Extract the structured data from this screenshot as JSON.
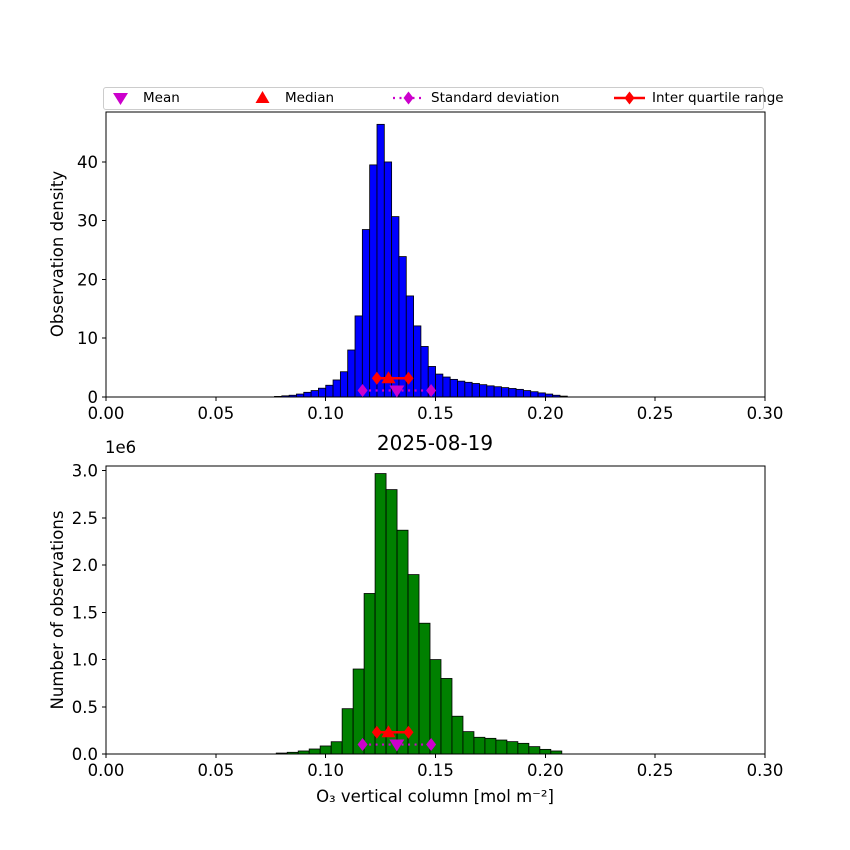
{
  "figure": {
    "title": "2025-08-19",
    "xlabel": "O₃ vertical column [mol m⁻²]",
    "ylabel_top": "Observation density",
    "ylabel_bottom": "Number of observations",
    "offset_label": "1e6",
    "background": "#FFFFFF"
  },
  "colors": {
    "blue_bars": "#0000FF",
    "green_bars": "#008000",
    "bar_edge": "#000000",
    "red_markers": "#FF0000",
    "magenta_markers": "#CC00CC",
    "axis": "#000000",
    "legend_border": "#CCCCCC"
  },
  "legend": {
    "items": [
      {
        "label": "Mean",
        "marker": "triangle-down",
        "color": "#CC00CC"
      },
      {
        "label": "Median",
        "marker": "triangle-up",
        "color": "#FF0000"
      },
      {
        "label": "Standard deviation",
        "marker": "diamond-dotted-line",
        "color": "#CC00CC"
      },
      {
        "label": "Inter quartile range",
        "marker": "diamond-solid-line",
        "color": "#FF0000"
      }
    ]
  },
  "stats": {
    "mean": 0.1324,
    "median": 0.1286,
    "q1": 0.1233,
    "q3": 0.1377,
    "std_range": [
      0.1168,
      0.148
    ]
  },
  "chart_data": [
    {
      "type": "bar",
      "name": "observation-density-histogram",
      "ylabel": "Observation density",
      "bar_color": "#0000FF",
      "bin_start": 0.0767,
      "bin_width": 0.003333,
      "values": [
        0.1,
        0.2,
        0.3,
        0.5,
        0.8,
        1.1,
        1.5,
        2.0,
        2.9,
        4.3,
        8.0,
        13.8,
        28.5,
        39.5,
        46.4,
        40.0,
        30.7,
        23.9,
        17.2,
        12.1,
        8.6,
        5.2,
        3.9,
        3.4,
        3.0,
        2.7,
        2.5,
        2.3,
        2.1,
        1.9,
        1.75,
        1.6,
        1.45,
        1.3,
        1.1,
        0.9,
        0.7,
        0.5,
        0.3,
        0.15
      ],
      "xlim": [
        0.0,
        0.3
      ],
      "ylim": [
        0,
        48.5
      ],
      "xticks": [
        0.0,
        0.05,
        0.1,
        0.15,
        0.2,
        0.25,
        0.3
      ],
      "xtick_labels": [
        "0.00",
        "0.05",
        "0.10",
        "0.15",
        "0.20",
        "0.25",
        "0.30"
      ],
      "yticks": [
        0,
        10,
        20,
        30,
        40
      ],
      "ytick_labels": [
        "0",
        "10",
        "20",
        "30",
        "40"
      ],
      "markers": {
        "mean_x": 0.1324,
        "median_x": 0.1286,
        "iqr": [
          0.1233,
          0.1377
        ],
        "iqr_y": 3.2,
        "std_range": [
          0.1168,
          0.148
        ],
        "std_y": 1.1,
        "std_color": "#CC00CC",
        "iqr_color": "#FF0000"
      }
    },
    {
      "type": "bar",
      "name": "number-of-observations-histogram",
      "title": "2025-08-19",
      "ylabel": "Number of observations",
      "y_unit": "1e6",
      "bar_color": "#008000",
      "bin_start": 0.0775,
      "bin_width": 0.005,
      "values": [
        0.01,
        0.018,
        0.032,
        0.053,
        0.085,
        0.13,
        0.48,
        0.9,
        1.7,
        2.97,
        2.8,
        2.37,
        1.9,
        1.385,
        1.0,
        0.8,
        0.4,
        0.237,
        0.177,
        0.166,
        0.148,
        0.131,
        0.113,
        0.078,
        0.049,
        0.032
      ],
      "xlim": [
        0.0,
        0.3
      ],
      "ylim": [
        0,
        3.05
      ],
      "xticks": [
        0.0,
        0.05,
        0.1,
        0.15,
        0.2,
        0.25,
        0.3
      ],
      "xtick_labels": [
        "0.00",
        "0.05",
        "0.10",
        "0.15",
        "0.20",
        "0.25",
        "0.30"
      ],
      "yticks": [
        0,
        0.5,
        1.0,
        1.5,
        2.0,
        2.5,
        3.0
      ],
      "ytick_labels": [
        "0.0",
        "0.5",
        "1.0",
        "1.5",
        "2.0",
        "2.5",
        "3.0"
      ],
      "markers": {
        "mean_x": 0.1324,
        "median_x": 0.1286,
        "iqr": [
          0.1233,
          0.1377
        ],
        "iqr_y": 0.23,
        "std_range": [
          0.1168,
          0.148
        ],
        "std_y": 0.1,
        "std_color": "#CC00CC",
        "iqr_color": "#FF0000"
      }
    }
  ]
}
